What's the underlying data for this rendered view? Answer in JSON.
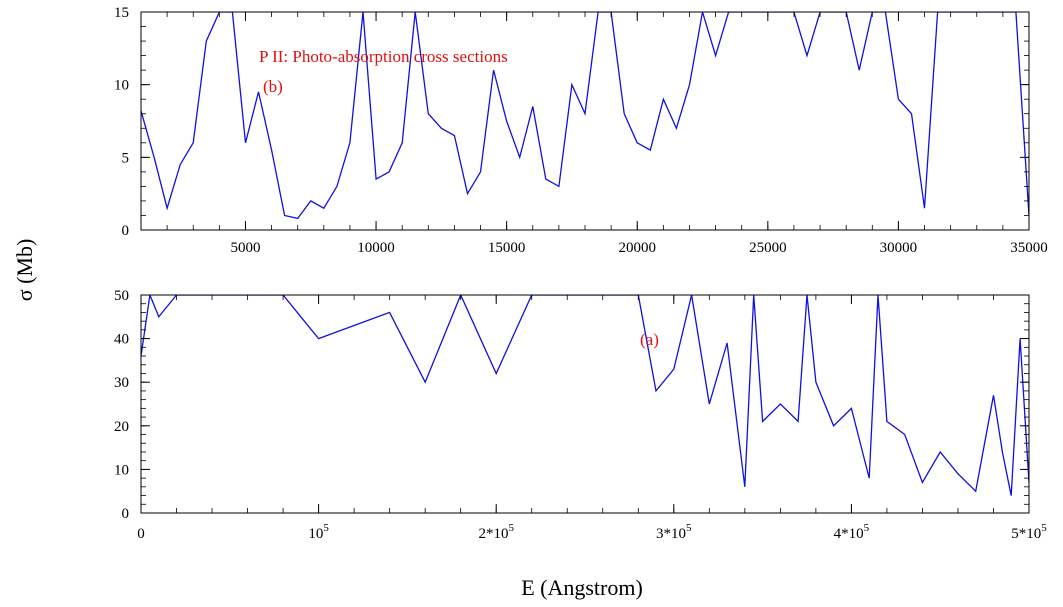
{
  "figure": {
    "ylabel": "σ (Mb)",
    "xlabel": "E (Angstrom)"
  },
  "chart_data": [
    {
      "id": "panel-b",
      "type": "line",
      "title": "P II: Photo-absorption cross sections",
      "annotation": "(b)",
      "xlim": [
        1000,
        35000
      ],
      "ylim": [
        0,
        15
      ],
      "x_ticks": [
        5000,
        10000,
        15000,
        20000,
        25000,
        30000,
        35000
      ],
      "x_tick_labels": [
        "5000",
        "10000",
        "15000",
        "20000",
        "25000",
        "30000",
        "35000"
      ],
      "y_ticks": [
        0,
        5,
        10,
        15
      ],
      "y_tick_labels": [
        "0",
        "5",
        "10",
        "15"
      ],
      "line_color": "#1010e0",
      "series": [
        {
          "x": [
            1000,
            1500,
            2000,
            2500,
            3000,
            3500,
            4000,
            4500,
            5000,
            5500,
            6000,
            6500,
            7000,
            7500,
            8000,
            8500,
            9000,
            9500,
            10000,
            10500,
            11000,
            11500,
            12000,
            12500,
            13000,
            13500,
            14000,
            14500,
            15000,
            15500,
            16000,
            16500,
            17000,
            17500,
            18000,
            18500,
            19000,
            19500,
            20000,
            20500,
            21000,
            21500,
            22000,
            22500,
            23000,
            23500,
            24000,
            24500,
            25000,
            25500,
            26000,
            26500,
            27000,
            27500,
            28000,
            28500,
            29000,
            29500,
            30000,
            30500,
            31000,
            31500,
            32000,
            32500,
            33000,
            33500,
            34000,
            34500,
            35000
          ],
          "values": [
            8.2,
            5.0,
            1.5,
            4.5,
            6.0,
            13.0,
            15.0,
            15.0,
            6.0,
            9.5,
            5.5,
            1.0,
            0.8,
            2.0,
            1.5,
            3.0,
            6.0,
            15.0,
            3.5,
            4.0,
            6.0,
            15.0,
            8.0,
            7.0,
            6.5,
            2.5,
            4.0,
            11.0,
            7.5,
            5.0,
            8.5,
            3.5,
            3.0,
            10.0,
            8.0,
            15.0,
            15.0,
            8.0,
            6.0,
            5.5,
            9.0,
            7.0,
            10.0,
            15.0,
            12.0,
            15.0,
            15.0,
            15.0,
            15.0,
            15.0,
            15.0,
            12.0,
            15.0,
            15.0,
            15.0,
            11.0,
            15.0,
            15.0,
            9.0,
            8.0,
            1.5,
            15.0,
            15.0,
            15.0,
            15.0,
            15.0,
            15.0,
            15.0,
            1.0
          ]
        }
      ]
    },
    {
      "id": "panel-a",
      "type": "line",
      "annotation": "(a)",
      "xlim": [
        0,
        500000
      ],
      "ylim": [
        0,
        50
      ],
      "x_ticks": [
        0,
        100000,
        200000,
        300000,
        400000,
        500000
      ],
      "x_tick_labels": [
        {
          "base": "0",
          "sup": ""
        },
        {
          "base": "10",
          "sup": "5"
        },
        {
          "base": "2*10",
          "sup": "5"
        },
        {
          "base": "3*10",
          "sup": "5"
        },
        {
          "base": "4*10",
          "sup": "5"
        },
        {
          "base": "5*10",
          "sup": "5"
        }
      ],
      "y_ticks": [
        0,
        10,
        20,
        30,
        40,
        50
      ],
      "y_tick_labels": [
        "0",
        "10",
        "20",
        "30",
        "40",
        "50"
      ],
      "line_color": "#1010e0",
      "series": [
        {
          "x": [
            0,
            5000,
            10000,
            20000,
            30000,
            40000,
            50000,
            60000,
            70000,
            80000,
            90000,
            100000,
            120000,
            140000,
            160000,
            180000,
            200000,
            220000,
            240000,
            260000,
            280000,
            290000,
            300000,
            310000,
            320000,
            330000,
            340000,
            345000,
            350000,
            360000,
            370000,
            375000,
            380000,
            390000,
            400000,
            410000,
            415000,
            420000,
            430000,
            440000,
            450000,
            460000,
            470000,
            480000,
            485000,
            490000,
            495000,
            500000
          ],
          "values": [
            36,
            50,
            45,
            50,
            50,
            50,
            50,
            50,
            50,
            50,
            45,
            40,
            43,
            46,
            30,
            50,
            32,
            50,
            50,
            50,
            50,
            28,
            33,
            50,
            25,
            39,
            6,
            50,
            21,
            25,
            21,
            50,
            30,
            20,
            24,
            8,
            50,
            21,
            18,
            7,
            14,
            9,
            5,
            27,
            14,
            4,
            40,
            7
          ]
        }
      ]
    }
  ]
}
